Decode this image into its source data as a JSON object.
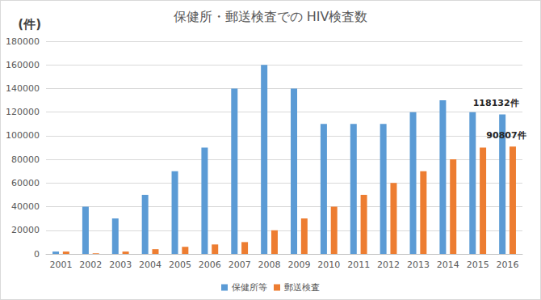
{
  "chart_data": {
    "type": "bar",
    "title": "保健所・郵送検査での HIV検査数",
    "y_label": "(件)",
    "categories": [
      "2001",
      "2002",
      "2003",
      "2004",
      "2005",
      "2006",
      "2007",
      "2008",
      "2009",
      "2010",
      "2011",
      "2012",
      "2013",
      "2014",
      "2015",
      "2016"
    ],
    "series": [
      {
        "name": "保健所等",
        "color": "#5b9bd5",
        "values": [
          2000,
          40000,
          30000,
          50000,
          70000,
          90000,
          140000,
          160000,
          140000,
          110000,
          110000,
          110000,
          120000,
          130000,
          120000,
          118132
        ]
      },
      {
        "name": "郵送検査",
        "color": "#ed7d31",
        "values": [
          2000,
          500,
          2000,
          4000,
          6000,
          8000,
          10000,
          20000,
          30000,
          40000,
          50000,
          60000,
          70000,
          80000,
          90000,
          90807
        ]
      }
    ],
    "annotations": [
      {
        "text": "118132件",
        "series": "保健所等",
        "category": "2016"
      },
      {
        "text": "90807件",
        "series": "郵送検査",
        "category": "2016"
      }
    ],
    "ylim": [
      0,
      180000
    ],
    "yticks": [
      0,
      20000,
      40000,
      60000,
      80000,
      100000,
      120000,
      140000,
      160000,
      180000
    ],
    "grid": true,
    "legend": "bottom"
  }
}
